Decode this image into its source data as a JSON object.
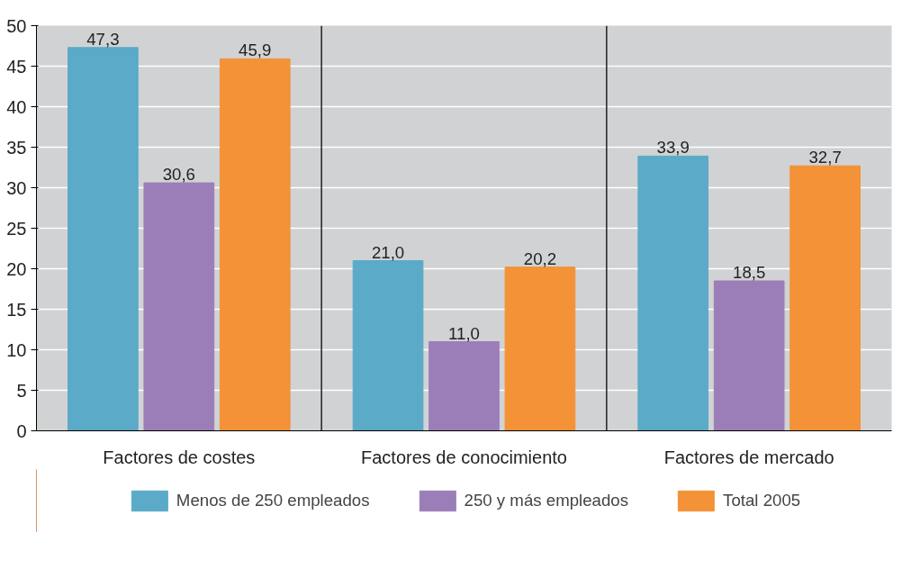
{
  "chart_data": {
    "type": "bar",
    "categories": [
      "Factores de costes",
      "Factores de conocimiento",
      "Factores de mercado"
    ],
    "series": [
      {
        "name": "Menos de 250 empleados",
        "color": "#5aaac8",
        "values": [
          47.3,
          21.0,
          33.9
        ],
        "value_labels": [
          "47,3",
          "21,0",
          "33,9"
        ]
      },
      {
        "name": "250 y más empleados",
        "color": "#9b7eb8",
        "values": [
          30.6,
          11.0,
          18.5
        ],
        "value_labels": [
          "30,6",
          "11,0",
          "18,5"
        ]
      },
      {
        "name": "Total 2005",
        "color": "#f39236",
        "values": [
          45.9,
          20.2,
          32.7
        ],
        "value_labels": [
          "45,9",
          "20,2",
          "32,7"
        ]
      }
    ],
    "ylim": [
      0,
      50
    ],
    "yticks": [
      0,
      5,
      10,
      15,
      20,
      25,
      30,
      35,
      40,
      45,
      50
    ],
    "grid": "y",
    "legend": "bottom"
  }
}
